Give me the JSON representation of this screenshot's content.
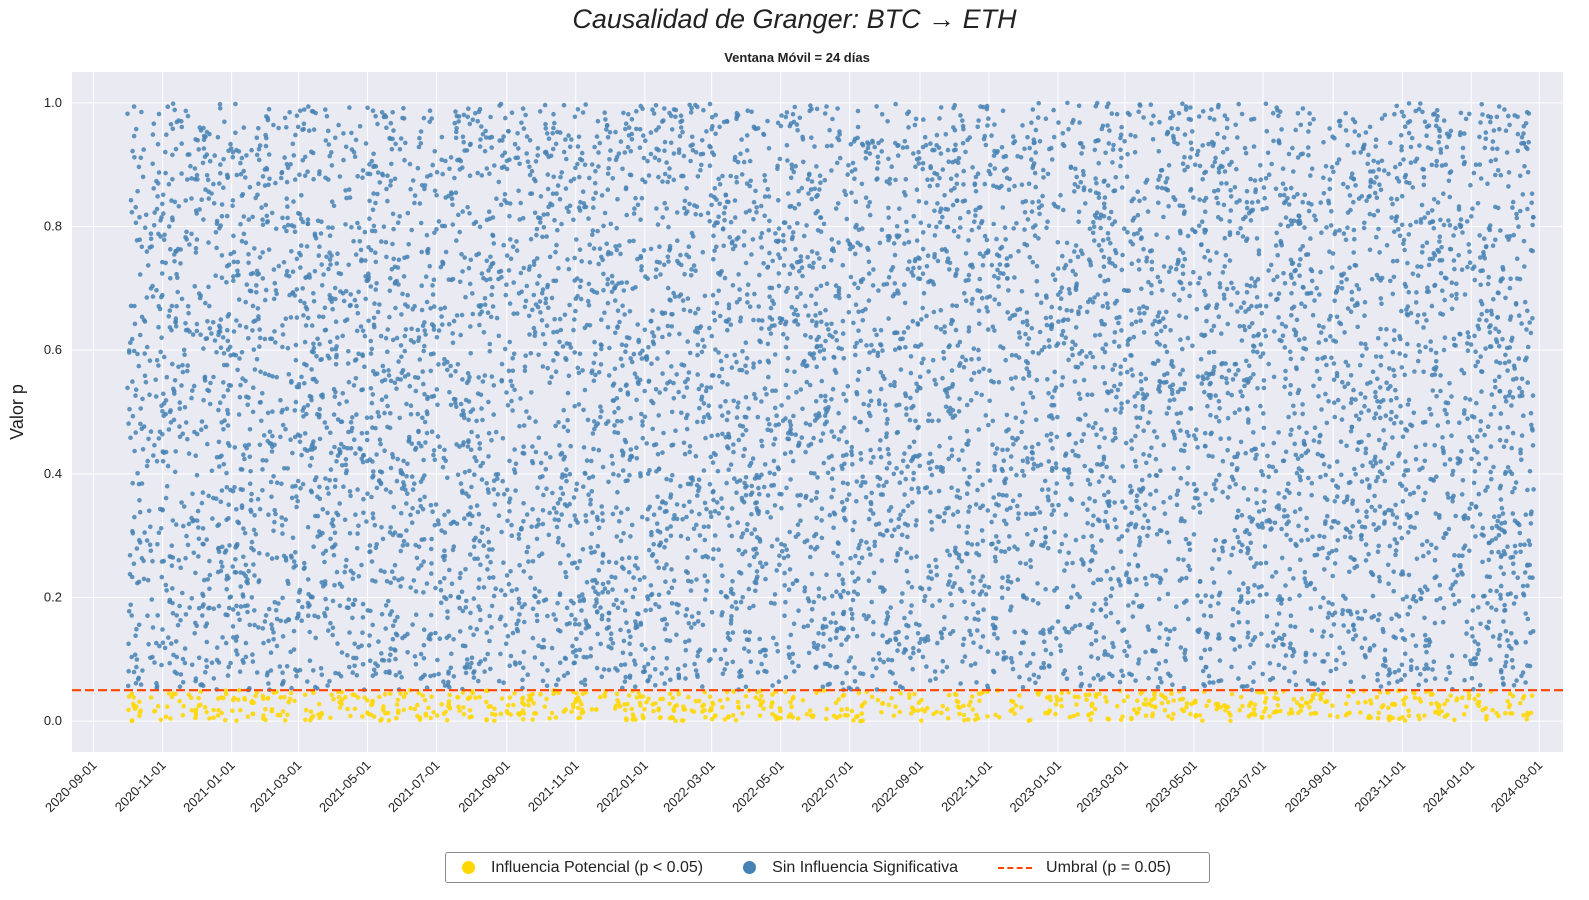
{
  "chart_data": {
    "type": "scatter",
    "title": "Causalidad de Granger: BTC → ETH",
    "subtitle": "Ventana Móvil = 24 días",
    "xlabel": "",
    "ylabel": "Valor p",
    "x_range": [
      "2020-08-13",
      "2024-03-22"
    ],
    "ylim": [
      -0.05,
      1.05
    ],
    "data_x_range": [
      "2020-10-01",
      "2024-02-25"
    ],
    "y_ticks": [
      "0.0",
      "0.2",
      "0.4",
      "0.6",
      "0.8",
      "1.0"
    ],
    "x_ticks": [
      "2020-09-01",
      "2020-11-01",
      "2021-01-01",
      "2021-03-01",
      "2021-05-01",
      "2021-07-01",
      "2021-09-01",
      "2021-11-01",
      "2022-01-01",
      "2022-03-01",
      "2022-05-01",
      "2022-07-01",
      "2022-09-01",
      "2022-11-01",
      "2023-01-01",
      "2023-03-01",
      "2023-05-01",
      "2023-07-01",
      "2023-09-01",
      "2023-11-01",
      "2024-01-01",
      "2024-03-01"
    ],
    "threshold": 0.05,
    "grid": true,
    "legend_position": "bottom-center",
    "series": [
      {
        "name": "Influencia Potencial (p < 0.05)",
        "color": "#ffd700",
        "condition": "p < 0.05"
      },
      {
        "name": "Sin Influencia Significativa",
        "color": "#4682b4",
        "condition": "p >= 0.05"
      },
      {
        "name": "Umbral (p = 0.05)",
        "color": "#ff4500",
        "style": "dashed-line"
      }
    ],
    "point_density_note": "dense uniform scatter across [0,1] for each date"
  }
}
